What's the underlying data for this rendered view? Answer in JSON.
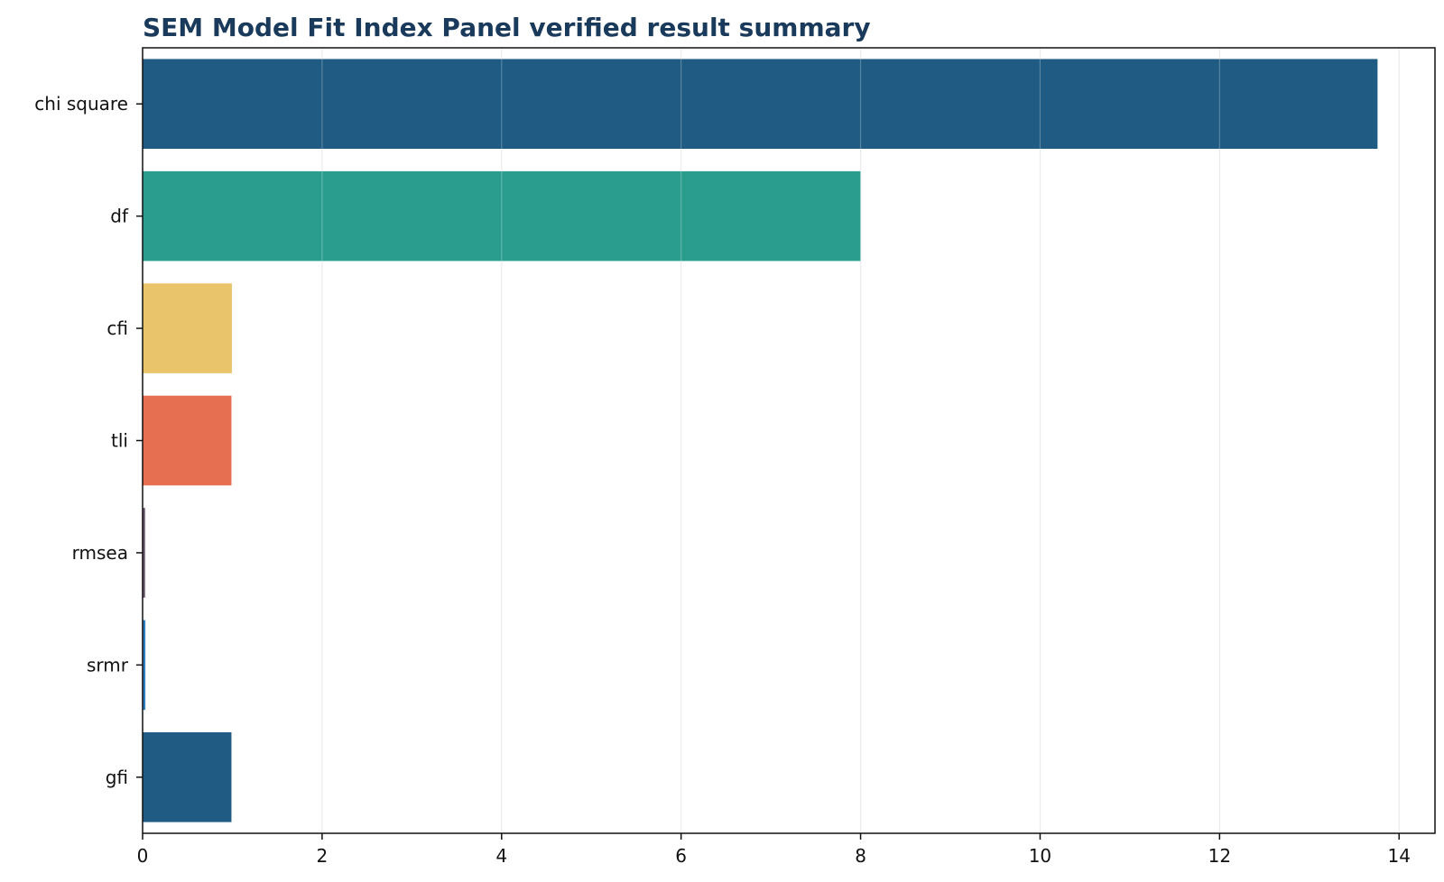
{
  "chart_data": {
    "type": "bar",
    "orientation": "horizontal",
    "title": "SEM Model Fit Index Panel verified result summary",
    "xlabel": "",
    "ylabel": "",
    "categories": [
      "chi square",
      "df",
      "cfi",
      "tli",
      "rmsea",
      "srmr",
      "gfi"
    ],
    "values": [
      13.76,
      8.0,
      0.995,
      0.99,
      0.028,
      0.031,
      0.99
    ],
    "colors": [
      "#1f5b82",
      "#2a9d8f",
      "#e9c46a",
      "#e76f51",
      "#6d5a72",
      "#2f7fc1",
      "#1f5b82"
    ],
    "xlim": [
      0,
      14.4
    ],
    "xticks": [
      0,
      2,
      4,
      6,
      8,
      10,
      12,
      14
    ],
    "grid": "x",
    "legend": "none"
  }
}
